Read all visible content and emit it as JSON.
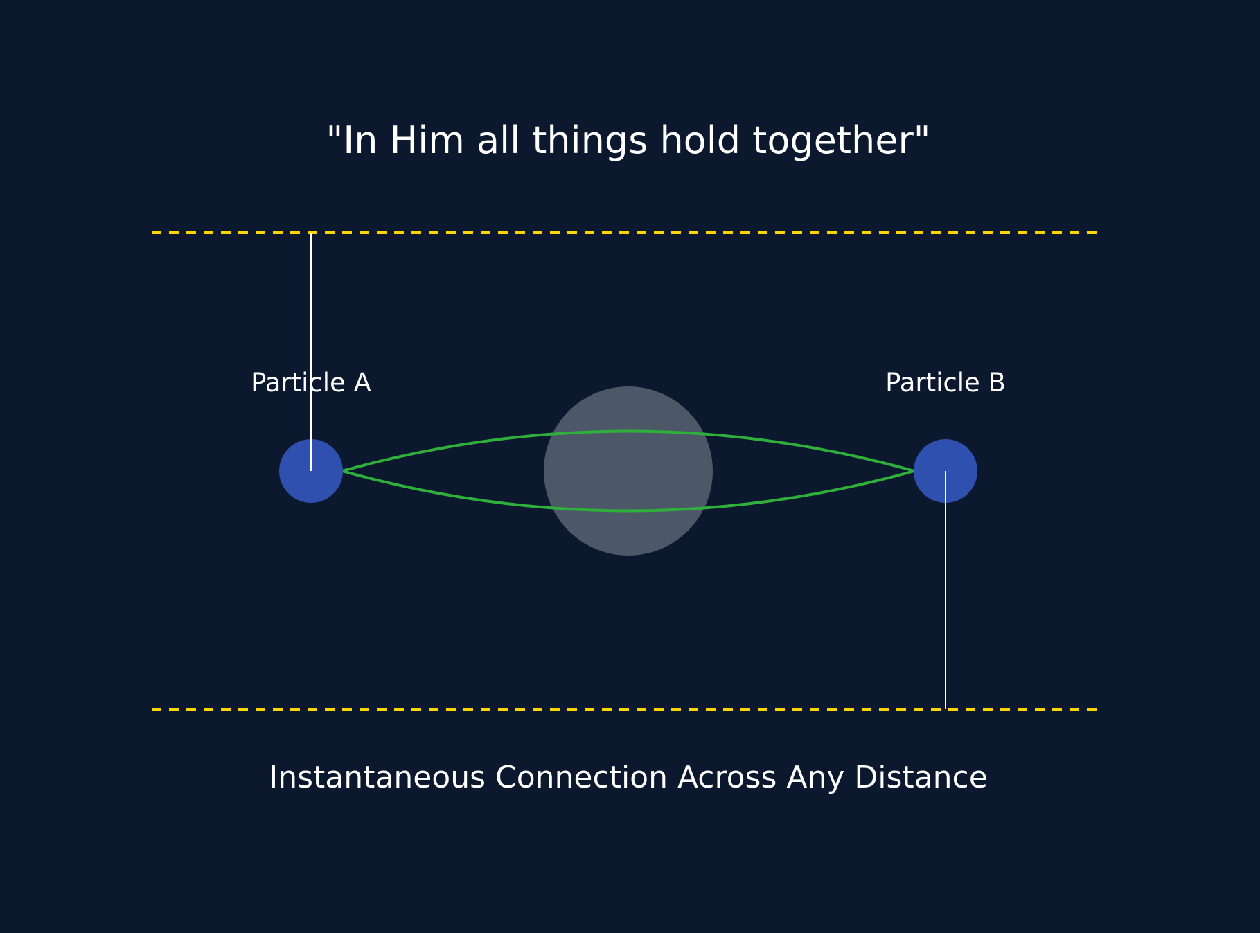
{
  "title": "\"In Him all things hold together\"",
  "particles": {
    "a": {
      "label": "Particle A"
    },
    "b": {
      "label": "Particle B"
    }
  },
  "caption": "Instantaneous Connection Across Any Distance",
  "colors": {
    "background": "#0b182e",
    "boundary_line": "#ffd500",
    "particle": "#3050b0",
    "connection": "#2eb03a",
    "center_sphere": "#4c5868",
    "tether": "#ffffff",
    "text": "#ffffff"
  }
}
